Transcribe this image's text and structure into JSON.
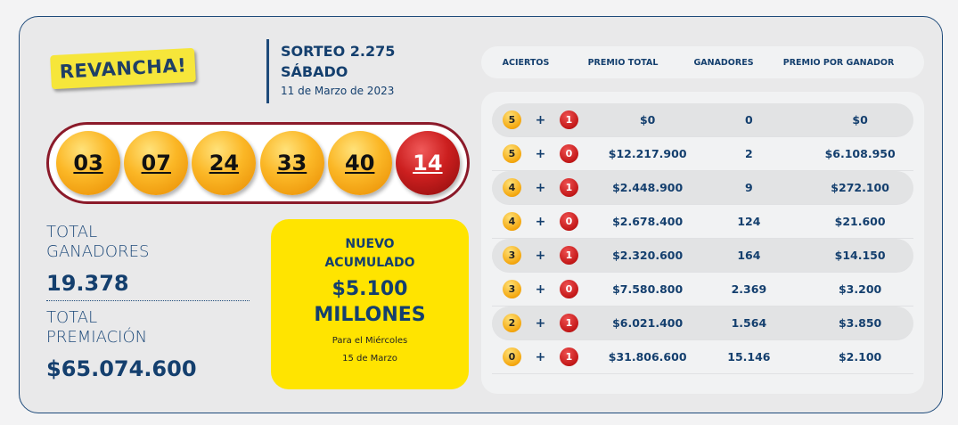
{
  "brand": "REVANCHA!",
  "draw": {
    "title": "SORTEO 2.275",
    "day": "SÁBADO",
    "date": "11 de Marzo de 2023"
  },
  "balls": [
    {
      "n": "03",
      "color": "yellow"
    },
    {
      "n": "07",
      "color": "yellow"
    },
    {
      "n": "24",
      "color": "yellow"
    },
    {
      "n": "33",
      "color": "yellow"
    },
    {
      "n": "40",
      "color": "yellow"
    },
    {
      "n": "14",
      "color": "red"
    }
  ],
  "totals": {
    "winners_label1": "TOTAL",
    "winners_label2": "GANADORES",
    "winners": "19.378",
    "prize_label1": "TOTAL",
    "prize_label2": "PREMIACIÓN",
    "prize": "$65.074.600"
  },
  "jackpot": {
    "line1": "NUEVO",
    "line2": "ACUMULADO",
    "amount": "$5.100",
    "unit": "MILLONES",
    "next1": "Para el Miércoles",
    "next2": "15 de Marzo"
  },
  "table": {
    "headers": [
      "ACIERTOS",
      "PREMIO TOTAL",
      "GANADORES",
      "PREMIO POR GANADOR"
    ],
    "rows": [
      {
        "hits": "5",
        "extra": "1",
        "total": "$0",
        "winners": "0",
        "per": "$0"
      },
      {
        "hits": "5",
        "extra": "0",
        "total": "$12.217.900",
        "winners": "2",
        "per": "$6.108.950"
      },
      {
        "hits": "4",
        "extra": "1",
        "total": "$2.448.900",
        "winners": "9",
        "per": "$272.100"
      },
      {
        "hits": "4",
        "extra": "0",
        "total": "$2.678.400",
        "winners": "124",
        "per": "$21.600"
      },
      {
        "hits": "3",
        "extra": "1",
        "total": "$2.320.600",
        "winners": "164",
        "per": "$14.150"
      },
      {
        "hits": "3",
        "extra": "0",
        "total": "$7.580.800",
        "winners": "2.369",
        "per": "$3.200"
      },
      {
        "hits": "2",
        "extra": "1",
        "total": "$6.021.400",
        "winners": "1.564",
        "per": "$3.850"
      },
      {
        "hits": "0",
        "extra": "1",
        "total": "$31.806.600",
        "winners": "15.146",
        "per": "$2.100"
      }
    ],
    "plus": "+"
  },
  "colors": {
    "navy": "#143f6e",
    "yellow": "#ffe400",
    "red_ball": "#cc1f1f",
    "border": "#8b1a2a"
  }
}
